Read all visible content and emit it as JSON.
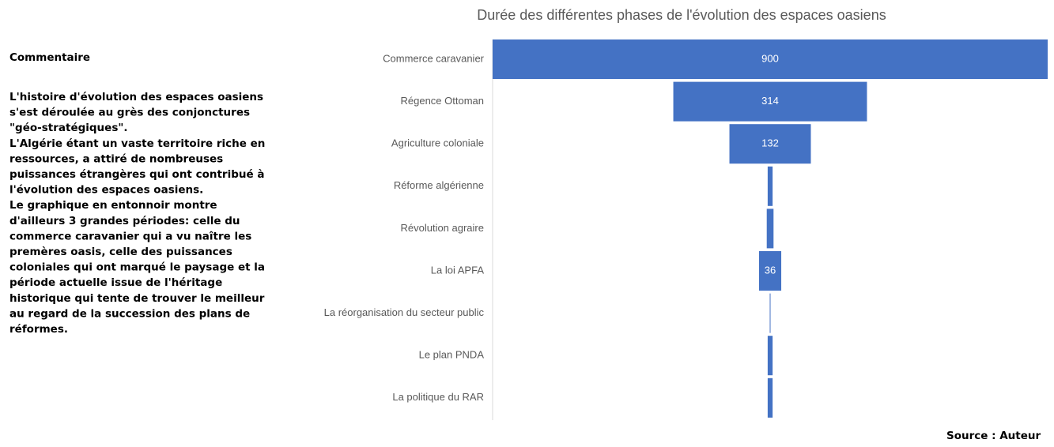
{
  "commentary": {
    "heading": "Commentaire",
    "lines": [
      "L'histoire d'évolution des espaces oasiens",
      "s'est déroulée au grès des conjonctures",
      "\"géo-stratégiques\".",
      "L'Algérie étant un vaste territoire riche en",
      "ressources, a attiré de nombreuses",
      "puissances étrangères qui ont contribué à",
      "l'évolution des espaces oasiens.",
      "Le graphique en entonnoir montre",
      "d'ailleurs 3 grandes périodes: celle du",
      "commerce caravanier qui a vu naître les",
      "premères oasis, celle des puissances",
      "coloniales qui ont marqué le paysage et la",
      "période actuelle issue de l'héritage",
      "historique qui tente de trouver le meilleur",
      "au regard de la succession des plans de",
      "réformes."
    ]
  },
  "source": "Source : Auteur",
  "chart_data": {
    "type": "funnel",
    "title": "Durée des différentes phases de l'évolution des espaces oasiens",
    "categories": [
      "Commerce caravanier",
      "Régence Ottoman",
      "Agriculture coloniale",
      "Réforme algérienne",
      "Révolution agraire",
      "La loi APFA",
      "La réorganisation du secteur public",
      "Le plan PNDA",
      "La politique du RAR"
    ],
    "values": [
      900,
      314,
      132,
      8,
      11,
      36,
      1,
      8,
      8
    ],
    "color": "#4472c4"
  }
}
